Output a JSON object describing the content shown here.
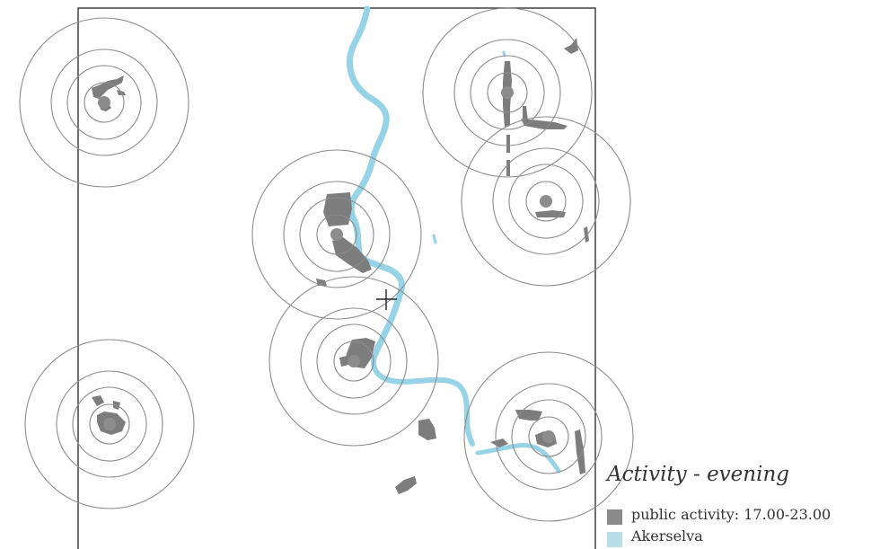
{
  "legend": {
    "title": "Activity - evening",
    "items": [
      {
        "label": "public activity: 17.00-23.00",
        "color": "#8a8a8a"
      },
      {
        "label": "Akerselva",
        "color": "#b8dde6"
      }
    ]
  },
  "colors": {
    "frame": "#333333",
    "ring": "#8c8c8c",
    "center": "#8c8c8c",
    "river": "#96d3e6",
    "activity": "#7d7d7d"
  },
  "layers": [
    "study-area-frame",
    "akerselva-river",
    "activity-patches",
    "distance-rings",
    "node-centers",
    "crosshair-marker"
  ]
}
